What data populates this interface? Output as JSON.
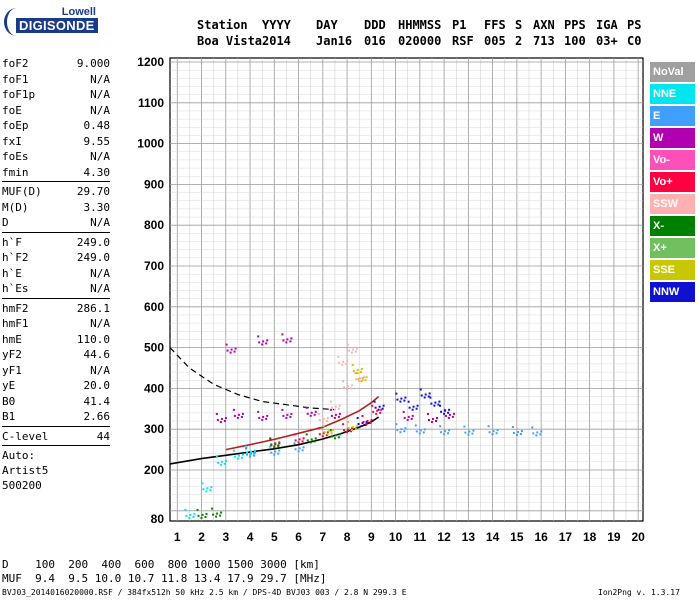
{
  "logo": {
    "top": "Lowell",
    "bottom": "DIGISONDE"
  },
  "header": {
    "row1": [
      "Station",
      "YYYY",
      "DAY",
      "DDD",
      "HHMMSS",
      "P1",
      "FFS",
      "S",
      "AXN",
      "PPS",
      "IGA",
      "PS"
    ],
    "row2": [
      "Boa Vista",
      "2014",
      "Jan16",
      "016",
      "020000",
      "RSF",
      "005",
      "2",
      "713",
      "100",
      "03+",
      "C0"
    ]
  },
  "params": [
    {
      "label": "foF2",
      "value": "9.000"
    },
    {
      "label": "foF1",
      "value": "N/A"
    },
    {
      "label": "foF1p",
      "value": "N/A"
    },
    {
      "label": "foE",
      "value": "N/A"
    },
    {
      "label": "foEp",
      "value": "0.48"
    },
    {
      "label": "fxI",
      "value": "9.55"
    },
    {
      "label": "foEs",
      "value": "N/A"
    },
    {
      "label": "fmin",
      "value": "4.30"
    },
    {
      "label": "MUF(D)",
      "value": "29.70"
    },
    {
      "label": "M(D)",
      "value": "3.30"
    },
    {
      "label": "D",
      "value": "N/A"
    },
    {
      "label": "h`F",
      "value": "249.0"
    },
    {
      "label": "h`F2",
      "value": "249.0"
    },
    {
      "label": "h`E",
      "value": "N/A"
    },
    {
      "label": "h`Es",
      "value": "N/A"
    },
    {
      "label": "hmF2",
      "value": "286.1"
    },
    {
      "label": "hmF1",
      "value": "N/A"
    },
    {
      "label": "hmE",
      "value": "110.0"
    },
    {
      "label": "yF2",
      "value": "44.6"
    },
    {
      "label": "yF1",
      "value": "N/A"
    },
    {
      "label": "yE",
      "value": "20.0"
    },
    {
      "label": "B0",
      "value": "41.4"
    },
    {
      "label": "B1",
      "value": "2.66"
    },
    {
      "label": "C-level",
      "value": "44"
    }
  ],
  "auto": {
    "line1": "Auto:",
    "line2": "Artist5",
    "line3": "500200"
  },
  "legend": [
    {
      "label": "NoVal",
      "color": "#a0a0a0"
    },
    {
      "label": "NNE",
      "color": "#00e5ee"
    },
    {
      "label": "E",
      "color": "#3fa0ff"
    },
    {
      "label": "W",
      "color": "#b000b0"
    },
    {
      "label": "Vo-",
      "color": "#ff4fb8"
    },
    {
      "label": "Vo+",
      "color": "#ff0040"
    },
    {
      "label": "SSW",
      "color": "#ffb0b0"
    },
    {
      "label": "X-",
      "color": "#008000"
    },
    {
      "label": "X+",
      "color": "#70c060"
    },
    {
      "label": "SSE",
      "color": "#c8c800"
    },
    {
      "label": "NNW",
      "color": "#1010d0"
    }
  ],
  "bottom": {
    "d_row": "D    100  200  400  600  800 1000 1500 3000 [km]",
    "muf_row": "MUF  9.4  9.5 10.0 10.7 11.8 13.4 17.9 29.7 [MHz]"
  },
  "footer": {
    "left": "BVJ03_2014016020000.RSF / 384fx512h 50 kHz 2.5 km / DPS-4D BVJ03 003 / 2.8 N 299.3 E",
    "right": "Ion2Png v. 1.3.17"
  },
  "chart_data": {
    "type": "scatter",
    "title": "",
    "xlabel": "",
    "ylabel": "",
    "xlim": [
      0.7,
      20.2
    ],
    "ylim": [
      80,
      1210
    ],
    "x_ticks": [
      1,
      2,
      3,
      4,
      5,
      6,
      7,
      8,
      9,
      10,
      11,
      12,
      13,
      14,
      15,
      16,
      17,
      18,
      19,
      20
    ],
    "y_ticks": [
      80,
      200,
      300,
      400,
      500,
      600,
      700,
      800,
      900,
      1000,
      1100,
      1200
    ],
    "grid": true,
    "series": [
      {
        "name": "E",
        "color": "#3fa0ff",
        "points": [
          [
            10.2,
            305
          ],
          [
            11,
            302
          ],
          [
            12,
            300
          ],
          [
            13,
            299
          ],
          [
            14,
            300
          ],
          [
            15,
            298
          ],
          [
            15.8,
            297
          ],
          [
            4,
            245
          ],
          [
            5,
            250
          ],
          [
            6,
            258
          ]
        ]
      },
      {
        "name": "W",
        "color": "#b000b0",
        "points": [
          [
            2.8,
            330
          ],
          [
            3.5,
            340
          ],
          [
            4.5,
            335
          ],
          [
            5.5,
            340
          ],
          [
            6.5,
            345
          ],
          [
            7.5,
            340
          ],
          [
            10.5,
            335
          ],
          [
            11.5,
            330
          ],
          [
            12.2,
            340
          ],
          [
            4.5,
            520
          ],
          [
            5.5,
            525
          ],
          [
            3.2,
            500
          ]
        ]
      },
      {
        "name": "NNW",
        "color": "#1010d0",
        "points": [
          [
            10.2,
            380
          ],
          [
            10.7,
            360
          ],
          [
            11.2,
            390
          ],
          [
            11.6,
            370
          ],
          [
            12,
            350
          ],
          [
            9.3,
            360
          ],
          [
            8.6,
            320
          ]
        ]
      },
      {
        "name": "Vo+",
        "color": "#ff0040",
        "points": [
          [
            5,
            270
          ],
          [
            6,
            280
          ],
          [
            7,
            295
          ],
          [
            8,
            305
          ],
          [
            8.8,
            325
          ],
          [
            9.2,
            350
          ]
        ]
      },
      {
        "name": "SSW",
        "color": "#ffb0b0",
        "points": [
          [
            7,
            330
          ],
          [
            7.5,
            360
          ],
          [
            8,
            410
          ],
          [
            8.5,
            430
          ],
          [
            8.2,
            500
          ],
          [
            7.8,
            470
          ]
        ]
      },
      {
        "name": "NNE",
        "color": "#00e5ee",
        "points": [
          [
            2.2,
            160
          ],
          [
            2.8,
            225
          ],
          [
            3.5,
            240
          ],
          [
            4,
            250
          ],
          [
            1.5,
            95
          ]
        ]
      },
      {
        "name": "X-",
        "color": "#008000",
        "points": [
          [
            2,
            95
          ],
          [
            2.6,
            98
          ],
          [
            5,
            268
          ],
          [
            6.5,
            280
          ],
          [
            7.5,
            290
          ]
        ]
      },
      {
        "name": "SSE",
        "color": "#c8c800",
        "points": [
          [
            7.2,
            300
          ],
          [
            8.2,
            310
          ],
          [
            8.6,
            430
          ],
          [
            8.4,
            450
          ]
        ]
      }
    ],
    "traces": [
      {
        "style": "solid",
        "color": "#000000",
        "points": [
          [
            0.7,
            215
          ],
          [
            2,
            228
          ],
          [
            3,
            236
          ],
          [
            4,
            244
          ],
          [
            5,
            252
          ],
          [
            6,
            262
          ],
          [
            7,
            276
          ],
          [
            7.8,
            290
          ],
          [
            8.5,
            305
          ],
          [
            9,
            318
          ],
          [
            9.3,
            330
          ]
        ]
      },
      {
        "style": "solid",
        "color": "#b22222",
        "points": [
          [
            3,
            250
          ],
          [
            4,
            262
          ],
          [
            5,
            275
          ],
          [
            6,
            290
          ],
          [
            7,
            305
          ],
          [
            7.8,
            325
          ],
          [
            8.5,
            345
          ],
          [
            9,
            365
          ],
          [
            9.3,
            380
          ]
        ]
      },
      {
        "style": "dashed",
        "color": "#000000",
        "points": [
          [
            0.7,
            500
          ],
          [
            1.5,
            450
          ],
          [
            2.5,
            410
          ],
          [
            3.5,
            385
          ],
          [
            4.5,
            368
          ],
          [
            5.5,
            360
          ],
          [
            6.5,
            352
          ],
          [
            7.5,
            348
          ]
        ]
      }
    ]
  }
}
